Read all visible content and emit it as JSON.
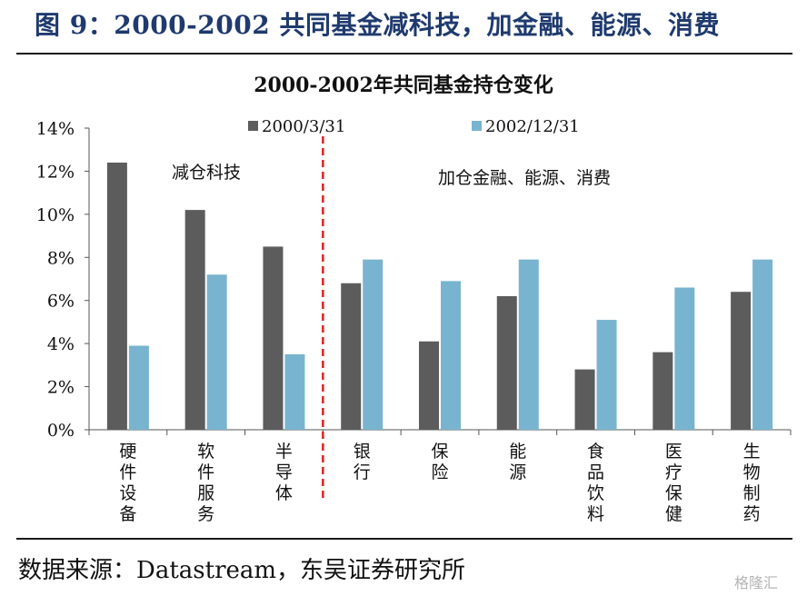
{
  "figure_title": "图 9：2000-2002 共同基金减科技，加金融、能源、消费",
  "source_note": "数据来源：Datastream，东吴证券研究所",
  "watermark": "格隆汇",
  "annotations": {
    "left": "减仓科技",
    "right": "加仓金融、能源、消费"
  },
  "colors": {
    "series1": "#5c5c5c",
    "series2": "#78b4cf",
    "divider": "#e0201e",
    "title": "#1f3a6e"
  },
  "chart_data": {
    "type": "bar",
    "title": "2000-2002年共同基金持仓变化",
    "xlabel": "",
    "ylabel": "",
    "ylim": [
      0,
      14
    ],
    "yticks": [
      "0%",
      "2%",
      "4%",
      "6%",
      "8%",
      "10%",
      "12%",
      "14%"
    ],
    "grid": false,
    "legend": "top",
    "categories": [
      "硬件设备",
      "软件服务",
      "半导体",
      "银行",
      "保险",
      "能源",
      "食品饮料",
      "医疗保健",
      "生物制药"
    ],
    "series": [
      {
        "name": "2000/3/31",
        "values": [
          12.4,
          10.2,
          8.5,
          6.8,
          4.1,
          6.2,
          2.8,
          3.6,
          6.4
        ]
      },
      {
        "name": "2002/12/31",
        "values": [
          3.9,
          7.2,
          3.5,
          7.9,
          6.9,
          7.9,
          5.1,
          6.6,
          7.9
        ]
      }
    ],
    "divider_after_category_index": 2
  }
}
